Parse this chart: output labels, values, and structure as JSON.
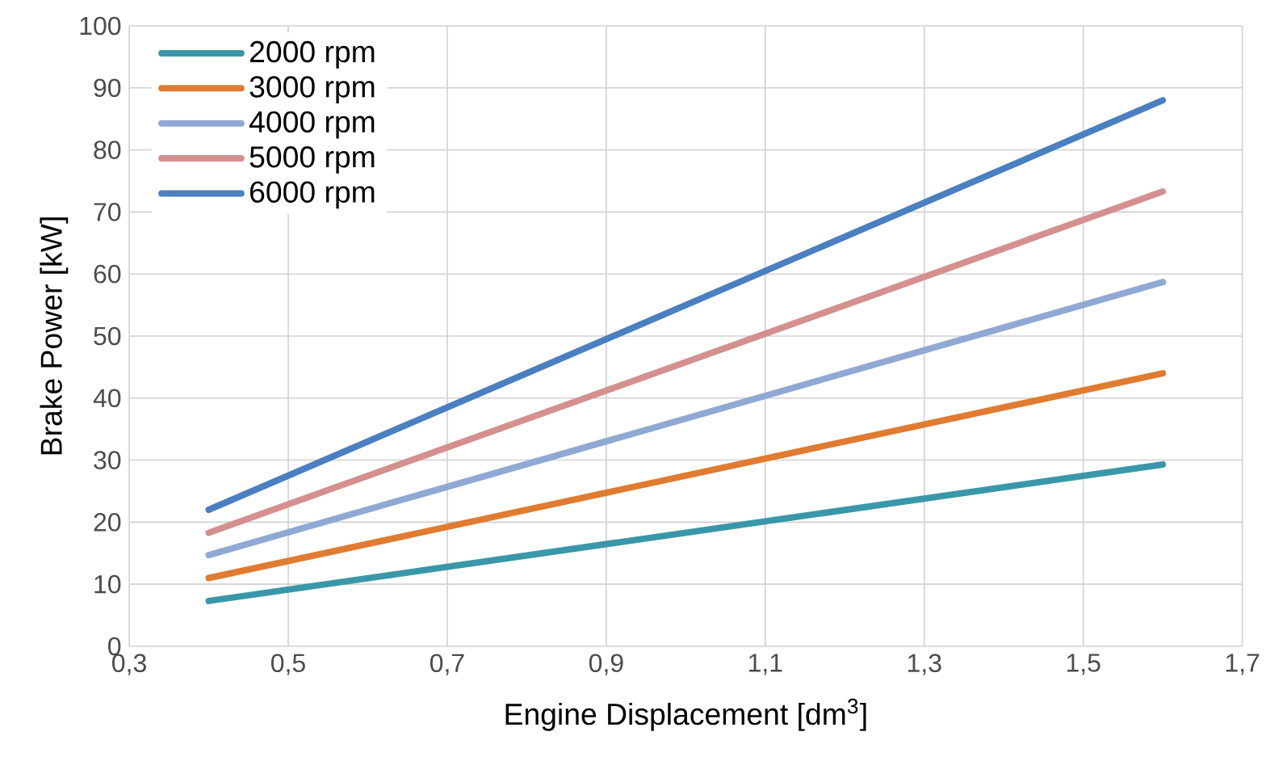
{
  "chart_data": {
    "type": "line",
    "xlabel": "Engine Displacement [dm$^{3}$]",
    "ylabel": "Brake Power [kW]",
    "x": [
      0.4,
      1.6
    ],
    "series": [
      {
        "name": "2000 rpm",
        "color": "#3a97a9",
        "values": [
          7.3,
          29.3
        ]
      },
      {
        "name": "3000 rpm",
        "color": "#e07b32",
        "values": [
          11,
          44
        ]
      },
      {
        "name": "4000 rpm",
        "color": "#8fa9d4",
        "values": [
          14.7,
          58.7
        ]
      },
      {
        "name": "5000 rpm",
        "color": "#d4908f",
        "values": [
          18.3,
          73.3
        ]
      },
      {
        "name": "6000 rpm",
        "color": "#4a7fc1",
        "values": [
          22,
          88
        ]
      }
    ],
    "xlim": [
      0.3,
      1.7
    ],
    "xticks": [
      {
        "value": 0.3,
        "label": "0,3"
      },
      {
        "value": 0.5,
        "label": "0,5"
      },
      {
        "value": 0.7,
        "label": "0,7"
      },
      {
        "value": 0.9,
        "label": "0,9"
      },
      {
        "value": 1.1,
        "label": "1,1"
      },
      {
        "value": 1.3,
        "label": "1,3"
      },
      {
        "value": 1.5,
        "label": "1,5"
      },
      {
        "value": 1.7,
        "label": "1,7"
      }
    ],
    "ylim": [
      0,
      100
    ],
    "yticks": [
      0,
      10,
      20,
      30,
      40,
      50,
      60,
      70,
      80,
      90,
      100
    ],
    "grid": true,
    "legend": "top left"
  }
}
